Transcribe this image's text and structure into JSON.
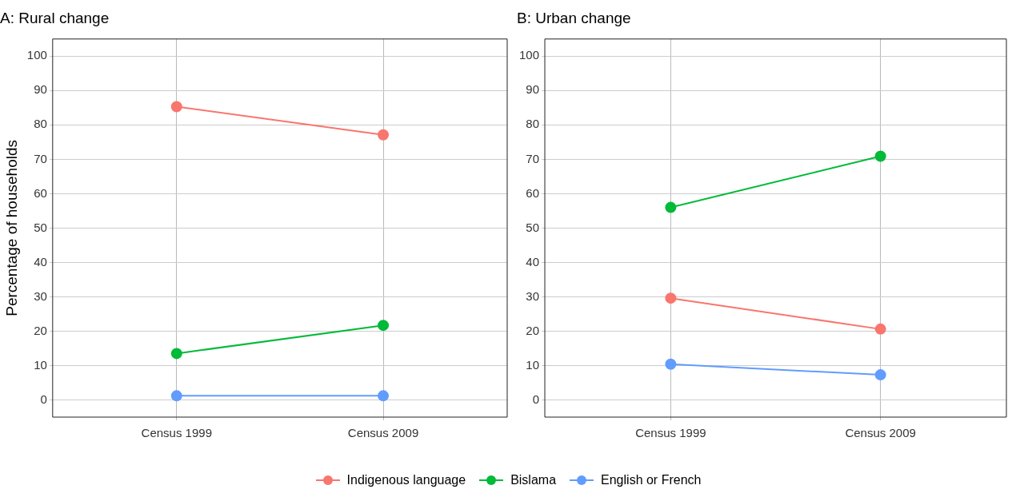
{
  "chart_data": [
    {
      "type": "line",
      "title": "A: Rural change",
      "ylabel": "Percentage of households",
      "categories": [
        "Census 1999",
        "Census 2009"
      ],
      "series": [
        {
          "name": "Indigenous language",
          "color": "#f8766d",
          "values": [
            85.3,
            77.1
          ]
        },
        {
          "name": "Bislama",
          "color": "#00ba38",
          "values": [
            13.5,
            21.7
          ]
        },
        {
          "name": "English or French",
          "color": "#619cff",
          "values": [
            1.2,
            1.2
          ]
        }
      ],
      "ylim": [
        -5,
        105
      ],
      "yticks": [
        0,
        10,
        20,
        30,
        40,
        50,
        60,
        70,
        80,
        90,
        100
      ],
      "grid": true,
      "legend": "bottom",
      "marker": "circle"
    },
    {
      "type": "line",
      "title": "B: Urban change",
      "categories": [
        "Census 1999",
        "Census 2009"
      ],
      "series": [
        {
          "color": "#f8766d",
          "values": [
            29.6,
            20.6
          ]
        },
        {
          "color": "#00ba38",
          "values": [
            56.0,
            70.9
          ]
        },
        {
          "color": "#619cff",
          "values": [
            10.4,
            7.3
          ]
        }
      ],
      "ylim": [
        -5,
        105
      ],
      "yticks": [
        0,
        10,
        20,
        30,
        40,
        50,
        60,
        70,
        80,
        90,
        100
      ],
      "grid": true,
      "marker": "circle"
    }
  ]
}
